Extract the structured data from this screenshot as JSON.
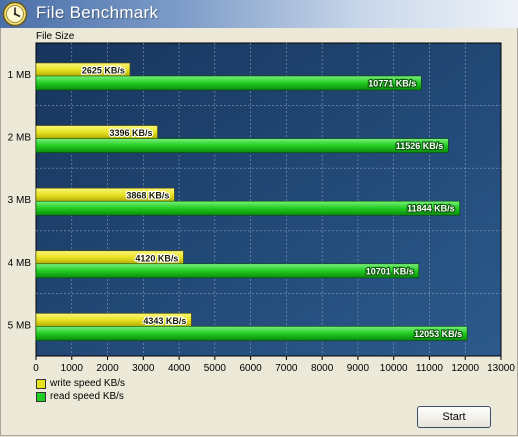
{
  "window": {
    "title": "File Benchmark",
    "icon": "clock-icon"
  },
  "chart_data": {
    "type": "bar",
    "orientation": "horizontal",
    "ylabel": "File Size",
    "categories": [
      "1 MB",
      "2 MB",
      "3 MB",
      "4 MB",
      "5 MB"
    ],
    "series": [
      {
        "name": "write speed KB/s",
        "color": "#e6e020",
        "values": [
          2625,
          3396,
          3868,
          4120,
          4343
        ]
      },
      {
        "name": "read speed KB/s",
        "color": "#22cc22",
        "values": [
          10771,
          11526,
          11844,
          10701,
          12053
        ]
      }
    ],
    "value_labels": {
      "write": [
        "2625 KB/s",
        "3396 KB/s",
        "3868 KB/s",
        "4120 KB/s",
        "4343 KB/s"
      ],
      "read": [
        "10771 KB/s",
        "11526 KB/s",
        "11844 KB/s",
        "10701 KB/s",
        "12053 KB/s"
      ]
    },
    "xlim": [
      0,
      13000
    ],
    "xticks": [
      0,
      1000,
      2000,
      3000,
      4000,
      5000,
      6000,
      7000,
      8000,
      9000,
      10000,
      11000,
      12000,
      13000
    ],
    "grid": true,
    "legend_position": "bottom-left",
    "background_color": "#1d3d66"
  },
  "legend": {
    "items": [
      {
        "label": "write speed KB/s",
        "color": "#e6e020"
      },
      {
        "label": "read speed KB/s",
        "color": "#22cc22"
      }
    ]
  },
  "controls": {
    "start_label": "Start"
  }
}
